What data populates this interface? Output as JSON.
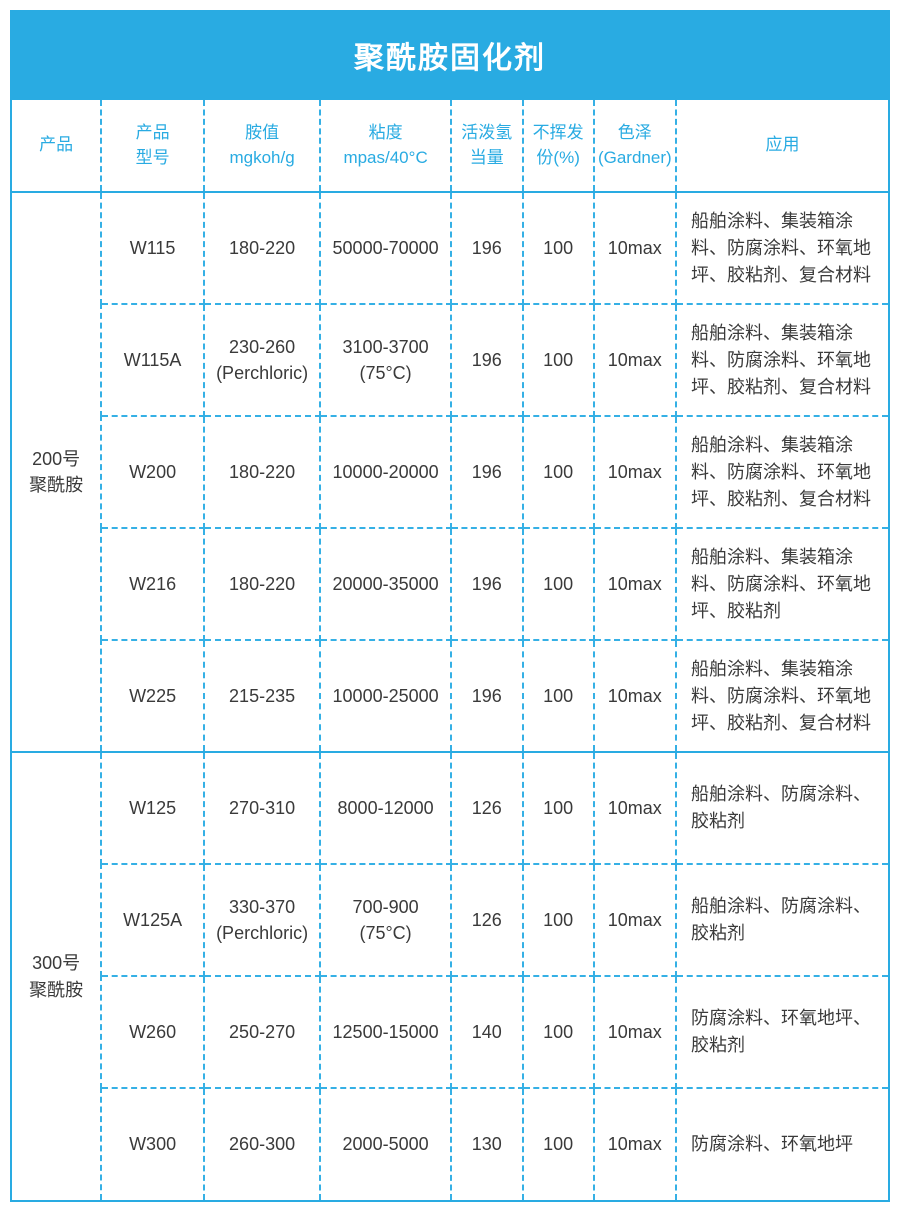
{
  "title_bar": {
    "text": "聚酰胺固化剂"
  },
  "colors": {
    "primary_blue": "#29abe2",
    "dashed_border_blue": "#35b0e5",
    "title_text": "#ffffff",
    "header_text": "#29abe2",
    "body_text": "#3a3a3a",
    "background": "#ffffff"
  },
  "table": {
    "columns": [
      {
        "key": "product",
        "label": "产品"
      },
      {
        "key": "model",
        "label": "产品\n型号"
      },
      {
        "key": "amine",
        "label": "胺值\nmgkoh/g"
      },
      {
        "key": "viscosity",
        "label": "粘度\nmpas/40°C"
      },
      {
        "key": "hydrogen",
        "label": "活泼氢\n当量"
      },
      {
        "key": "nonvolatile",
        "label": "不挥发\n份(%)"
      },
      {
        "key": "color",
        "label": "色泽\n(Gardner)"
      },
      {
        "key": "application",
        "label": "应用"
      }
    ],
    "groups": [
      {
        "product": "200号\n聚酰胺",
        "rows": [
          {
            "model": "W115",
            "amine": "180-220",
            "viscosity": "50000-70000",
            "hydrogen": "196",
            "nonvolatile": "100",
            "color": "10max",
            "application": "船舶涂料、集装箱涂料、防腐涂料、环氧地坪、胶粘剂、复合材料"
          },
          {
            "model": "W115A",
            "amine": "230-260\n(Perchloric)",
            "viscosity": "3100-3700\n(75°C)",
            "hydrogen": "196",
            "nonvolatile": "100",
            "color": "10max",
            "application": "船舶涂料、集装箱涂料、防腐涂料、环氧地坪、胶粘剂、复合材料"
          },
          {
            "model": "W200",
            "amine": "180-220",
            "viscosity": "10000-20000",
            "hydrogen": "196",
            "nonvolatile": "100",
            "color": "10max",
            "application": "船舶涂料、集装箱涂料、防腐涂料、环氧地坪、胶粘剂、复合材料"
          },
          {
            "model": "W216",
            "amine": "180-220",
            "viscosity": "20000-35000",
            "hydrogen": "196",
            "nonvolatile": "100",
            "color": "10max",
            "application": "船舶涂料、集装箱涂料、防腐涂料、环氧地坪、胶粘剂"
          },
          {
            "model": "W225",
            "amine": "215-235",
            "viscosity": "10000-25000",
            "hydrogen": "196",
            "nonvolatile": "100",
            "color": "10max",
            "application": "船舶涂料、集装箱涂料、防腐涂料、环氧地坪、胶粘剂、复合材料"
          }
        ]
      },
      {
        "product": "300号\n聚酰胺",
        "rows": [
          {
            "model": "W125",
            "amine": "270-310",
            "viscosity": "8000-12000",
            "hydrogen": "126",
            "nonvolatile": "100",
            "color": "10max",
            "application": "船舶涂料、防腐涂料、胶粘剂"
          },
          {
            "model": "W125A",
            "amine": "330-370\n(Perchloric)",
            "viscosity": "700-900\n(75°C)",
            "hydrogen": "126",
            "nonvolatile": "100",
            "color": "10max",
            "application": "船舶涂料、防腐涂料、胶粘剂"
          },
          {
            "model": "W260",
            "amine": "250-270",
            "viscosity": "12500-15000",
            "hydrogen": "140",
            "nonvolatile": "100",
            "color": "10max",
            "application": "防腐涂料、环氧地坪、胶粘剂"
          },
          {
            "model": "W300",
            "amine": "260-300",
            "viscosity": "2000-5000",
            "hydrogen": "130",
            "nonvolatile": "100",
            "color": "10max",
            "application": "防腐涂料、环氧地坪"
          }
        ]
      }
    ]
  }
}
